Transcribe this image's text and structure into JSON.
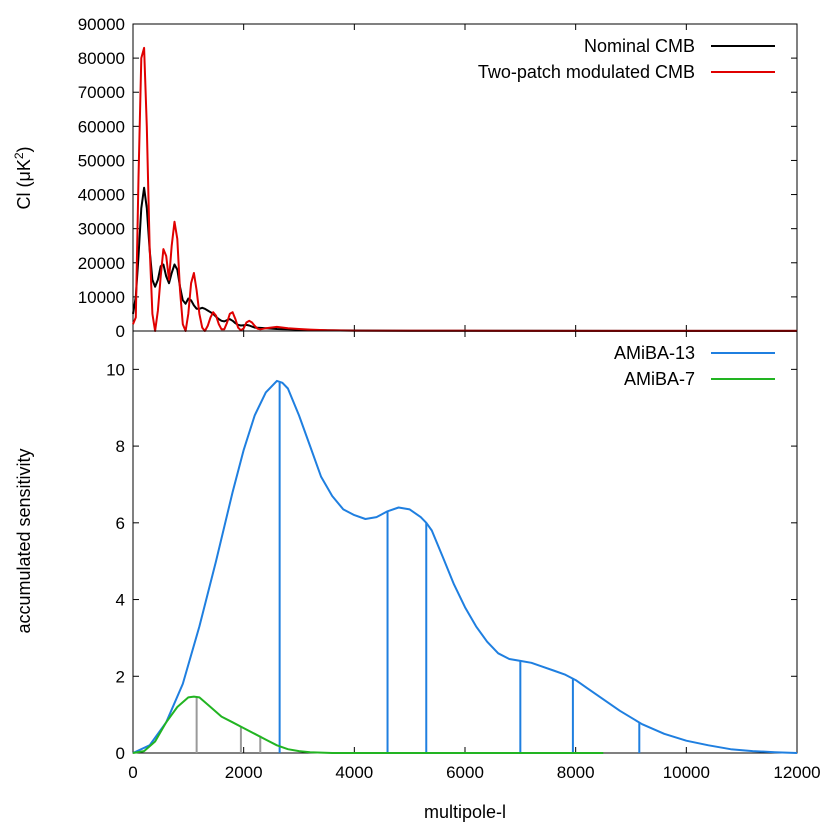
{
  "chart_data": [
    {
      "type": "line",
      "panel": "top",
      "xlim": [
        0,
        12000
      ],
      "ylim": [
        0,
        90000
      ],
      "yticks": [
        0,
        10000,
        20000,
        30000,
        40000,
        50000,
        60000,
        70000,
        80000,
        90000
      ],
      "ylabel_prefix": "Cl (μK",
      "ylabel_sup": "2",
      "ylabel_suffix": ")",
      "legend_position": "top-right",
      "series": [
        {
          "name": "Nominal CMB",
          "color": "#000000",
          "x": [
            0,
            50,
            100,
            150,
            200,
            250,
            300,
            350,
            400,
            450,
            500,
            550,
            600,
            650,
            700,
            750,
            800,
            850,
            900,
            950,
            1000,
            1050,
            1100,
            1150,
            1200,
            1250,
            1300,
            1350,
            1400,
            1450,
            1500,
            1550,
            1600,
            1650,
            1700,
            1750,
            1800,
            1850,
            1900,
            1950,
            2000,
            2050,
            2100,
            2150,
            2200,
            2300,
            2400,
            2600,
            2800,
            3000,
            3200,
            3500,
            4000,
            5000,
            7000,
            12000
          ],
          "y": [
            5000,
            10000,
            22000,
            36000,
            42000,
            36000,
            24000,
            15000,
            13000,
            15000,
            19000,
            19500,
            16000,
            14000,
            17000,
            19500,
            18000,
            13000,
            9000,
            8000,
            9500,
            9000,
            7500,
            6500,
            6500,
            6800,
            6500,
            6000,
            5500,
            5000,
            4200,
            3500,
            3000,
            2800,
            3200,
            3500,
            3000,
            2300,
            1800,
            1600,
            1700,
            1800,
            1600,
            1300,
            1000,
            900,
            800,
            600,
            500,
            400,
            300,
            200,
            150,
            100,
            50,
            20
          ]
        },
        {
          "name": "Two-patch modulated CMB",
          "color": "#e00000",
          "x": [
            0,
            50,
            100,
            150,
            200,
            250,
            300,
            350,
            400,
            450,
            500,
            550,
            600,
            650,
            700,
            750,
            800,
            850,
            900,
            950,
            1000,
            1050,
            1100,
            1150,
            1200,
            1250,
            1300,
            1350,
            1400,
            1450,
            1500,
            1550,
            1600,
            1650,
            1700,
            1750,
            1800,
            1850,
            1900,
            1950,
            2000,
            2050,
            2100,
            2150,
            2200,
            2250,
            2300,
            2400,
            2600,
            2800,
            3000,
            3200,
            3500,
            4000,
            6000,
            12000
          ],
          "y": [
            2000,
            4000,
            45000,
            80000,
            83000,
            60000,
            25000,
            5000,
            0,
            6000,
            16000,
            24000,
            22000,
            15000,
            25000,
            32000,
            27000,
            12000,
            2000,
            0,
            5000,
            14000,
            17000,
            12000,
            5000,
            1000,
            0,
            1500,
            4000,
            5500,
            4500,
            2000,
            500,
            500,
            2500,
            5000,
            5500,
            3500,
            1000,
            200,
            800,
            2500,
            3000,
            2500,
            1500,
            700,
            500,
            800,
            1200,
            800,
            600,
            400,
            200,
            100,
            50,
            20
          ]
        }
      ]
    },
    {
      "type": "line",
      "panel": "bottom",
      "xlim": [
        0,
        12000
      ],
      "ylim": [
        0,
        11
      ],
      "xticks": [
        0,
        2000,
        4000,
        6000,
        8000,
        10000,
        12000
      ],
      "yticks": [
        0,
        2,
        4,
        6,
        8,
        10
      ],
      "xlabel": "multipole-l",
      "ylabel": "accumulated sensitivity",
      "legend_position": "top-right",
      "series": [
        {
          "name": "AMiBA-13",
          "color": "#1f7fe0",
          "x": [
            0,
            300,
            600,
            900,
            1200,
            1500,
            1800,
            2000,
            2200,
            2400,
            2600,
            2700,
            2800,
            3000,
            3200,
            3400,
            3600,
            3800,
            4000,
            4200,
            4400,
            4600,
            4800,
            5000,
            5200,
            5300,
            5400,
            5600,
            5800,
            6000,
            6200,
            6400,
            6600,
            6800,
            7000,
            7200,
            7400,
            7600,
            7800,
            8000,
            8200,
            8500,
            8800,
            9200,
            9600,
            10000,
            10400,
            10800,
            11200,
            11600,
            12000
          ],
          "y": [
            0,
            0.2,
            0.8,
            1.8,
            3.3,
            5.0,
            6.8,
            7.9,
            8.8,
            9.4,
            9.7,
            9.65,
            9.5,
            8.8,
            8.0,
            7.2,
            6.7,
            6.35,
            6.2,
            6.1,
            6.15,
            6.3,
            6.4,
            6.35,
            6.15,
            6.0,
            5.8,
            5.1,
            4.4,
            3.8,
            3.3,
            2.9,
            2.6,
            2.45,
            2.4,
            2.35,
            2.25,
            2.15,
            2.05,
            1.9,
            1.7,
            1.4,
            1.1,
            0.75,
            0.5,
            0.32,
            0.2,
            0.1,
            0.05,
            0.02,
            0
          ],
          "markers": [
            {
              "x": 2650,
              "y": 9.65
            },
            {
              "x": 4600,
              "y": 6.3
            },
            {
              "x": 5300,
              "y": 6.0
            },
            {
              "x": 7000,
              "y": 2.4
            },
            {
              "x": 7950,
              "y": 1.95
            },
            {
              "x": 9150,
              "y": 0.78
            }
          ]
        },
        {
          "name": "AMiBA-7",
          "color": "#22b422",
          "x": [
            0,
            200,
            400,
            600,
            800,
            1000,
            1100,
            1200,
            1400,
            1600,
            1800,
            2000,
            2200,
            2400,
            2600,
            2800,
            3000,
            3200,
            3400,
            3600,
            4000,
            6000,
            8500
          ],
          "y": [
            0,
            0.05,
            0.3,
            0.8,
            1.2,
            1.45,
            1.47,
            1.45,
            1.2,
            0.95,
            0.8,
            0.65,
            0.5,
            0.35,
            0.2,
            0.1,
            0.05,
            0.02,
            0.01,
            0,
            0,
            0,
            0
          ],
          "markers": [
            {
              "x": 1150,
              "y": 1.46
            },
            {
              "x": 1950,
              "y": 0.68
            },
            {
              "x": 2300,
              "y": 0.45
            }
          ],
          "marker_color": "#9a9a9a"
        }
      ]
    }
  ]
}
